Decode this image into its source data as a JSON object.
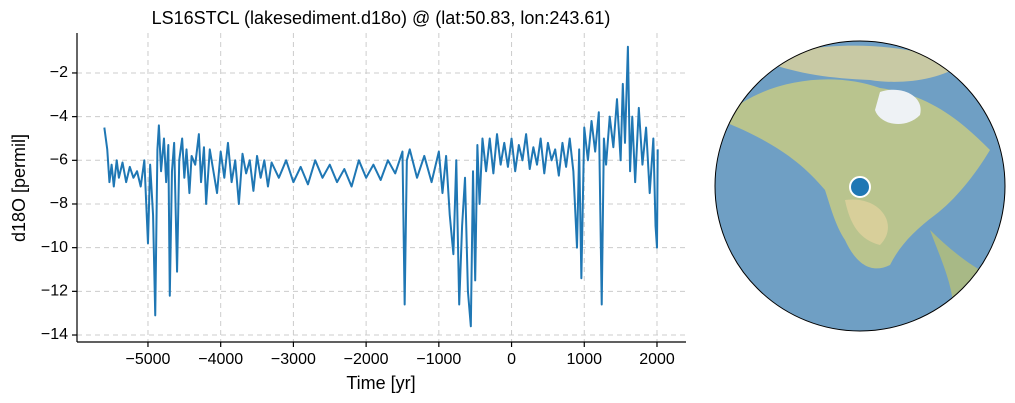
{
  "chart_data": {
    "type": "line",
    "title": "LS16STCL (lakesediment.d18o) @ (lat:50.83, lon:243.61)",
    "x_label": "Time [yr]",
    "y_label": "d18O [permil]",
    "grid": true,
    "xlim": [
      -5976,
      2399
    ],
    "ylim": [
      -14.32,
      -0.17
    ],
    "xticks": [
      {
        "value": -5000,
        "label": "−5000"
      },
      {
        "value": -4000,
        "label": "−4000"
      },
      {
        "value": -3000,
        "label": "−3000"
      },
      {
        "value": -2000,
        "label": "−2000"
      },
      {
        "value": -1000,
        "label": "−1000"
      },
      0,
      1000,
      2000
    ],
    "yticks": [
      {
        "value": -14,
        "label": "−14"
      },
      {
        "value": -12,
        "label": "−12"
      },
      {
        "value": -10,
        "label": "−10"
      },
      {
        "value": -8,
        "label": "−8"
      },
      {
        "value": -6,
        "label": "−6"
      },
      {
        "value": -4,
        "label": "−4"
      },
      {
        "value": -2,
        "label": "−2"
      }
    ],
    "x": [
      -5600,
      -5560,
      -5530,
      -5500,
      -5470,
      -5430,
      -5400,
      -5350,
      -5300,
      -5250,
      -5200,
      -5150,
      -5100,
      -5050,
      -5000,
      -4970,
      -4930,
      -4900,
      -4870,
      -4850,
      -4820,
      -4780,
      -4750,
      -4720,
      -4700,
      -4670,
      -4640,
      -4600,
      -4570,
      -4530,
      -4500,
      -4470,
      -4430,
      -4400,
      -4350,
      -4300,
      -4270,
      -4230,
      -4200,
      -4150,
      -4100,
      -4050,
      -4000,
      -3950,
      -3900,
      -3850,
      -3800,
      -3750,
      -3700,
      -3650,
      -3600,
      -3550,
      -3500,
      -3450,
      -3400,
      -3350,
      -3300,
      -3200,
      -3100,
      -3000,
      -2900,
      -2800,
      -2700,
      -2600,
      -2500,
      -2400,
      -2300,
      -2200,
      -2100,
      -2000,
      -1900,
      -1800,
      -1700,
      -1600,
      -1500,
      -1470,
      -1440,
      -1400,
      -1300,
      -1200,
      -1100,
      -1000,
      -950,
      -900,
      -850,
      -800,
      -760,
      -720,
      -680,
      -640,
      -600,
      -560,
      -530,
      -500,
      -470,
      -440,
      -400,
      -350,
      -300,
      -250,
      -200,
      -150,
      -100,
      -50,
      0,
      50,
      100,
      150,
      200,
      250,
      300,
      350,
      400,
      450,
      500,
      550,
      600,
      650,
      700,
      750,
      800,
      850,
      900,
      930,
      960,
      1000,
      1050,
      1100,
      1150,
      1200,
      1240,
      1270,
      1300,
      1350,
      1400,
      1450,
      1500,
      1530,
      1560,
      1600,
      1630,
      1660,
      1700,
      1750,
      1800,
      1850,
      1900,
      1950,
      1980,
      2000,
      2010
    ],
    "series": [
      {
        "color": "#1f77b4",
        "values": [
          -4.5,
          -5.5,
          -7,
          -6.2,
          -7.2,
          -6,
          -6.8,
          -6.1,
          -7,
          -6.3,
          -6.8,
          -6.5,
          -7.2,
          -6,
          -9.8,
          -6.2,
          -8.5,
          -13.1,
          -5.5,
          -4.4,
          -6.5,
          -5,
          -7,
          -5.3,
          -12.2,
          -6.5,
          -5.2,
          -11.1,
          -6,
          -5,
          -6.8,
          -5.5,
          -7.5,
          -5.8,
          -6.2,
          -4.8,
          -7,
          -5.4,
          -8,
          -5.5,
          -6.5,
          -7.5,
          -5.6,
          -6.8,
          -5.2,
          -7,
          -6,
          -8,
          -5.7,
          -6.6,
          -6,
          -7.4,
          -5.8,
          -6.8,
          -6,
          -7.2,
          -6.1,
          -6.8,
          -6,
          -7,
          -6.3,
          -7.1,
          -6,
          -6.8,
          -6.2,
          -7,
          -6.4,
          -7.2,
          -6,
          -6.8,
          -6.2,
          -6.9,
          -6,
          -6.6,
          -5.6,
          -12.6,
          -6,
          -5.5,
          -6.8,
          -5.8,
          -7,
          -5.6,
          -7.5,
          -5.8,
          -8.5,
          -10.3,
          -6,
          -12.6,
          -9,
          -6.8,
          -12,
          -13.6,
          -6.5,
          -11.5,
          -5.3,
          -8,
          -5,
          -6.5,
          -5,
          -6.6,
          -4.8,
          -6.2,
          -5.2,
          -6.3,
          -5,
          -6.5,
          -5.3,
          -6,
          -4.8,
          -6.4,
          -5.4,
          -6.2,
          -5,
          -6.6,
          -5.2,
          -6,
          -5.5,
          -6.7,
          -5.2,
          -6.3,
          -5,
          -6.5,
          -10,
          -5.5,
          -11.4,
          -4.5,
          -6,
          -4.2,
          -5.6,
          -3.8,
          -12.6,
          -5,
          -6.2,
          -4,
          -5.4,
          -3.2,
          -6,
          -2.5,
          -5.2,
          -0.8,
          -6.5,
          -4,
          -7,
          -3.6,
          -6.2,
          -4.5,
          -7.5,
          -5,
          -9,
          -10,
          -5.5
        ]
      }
    ]
  }
}
